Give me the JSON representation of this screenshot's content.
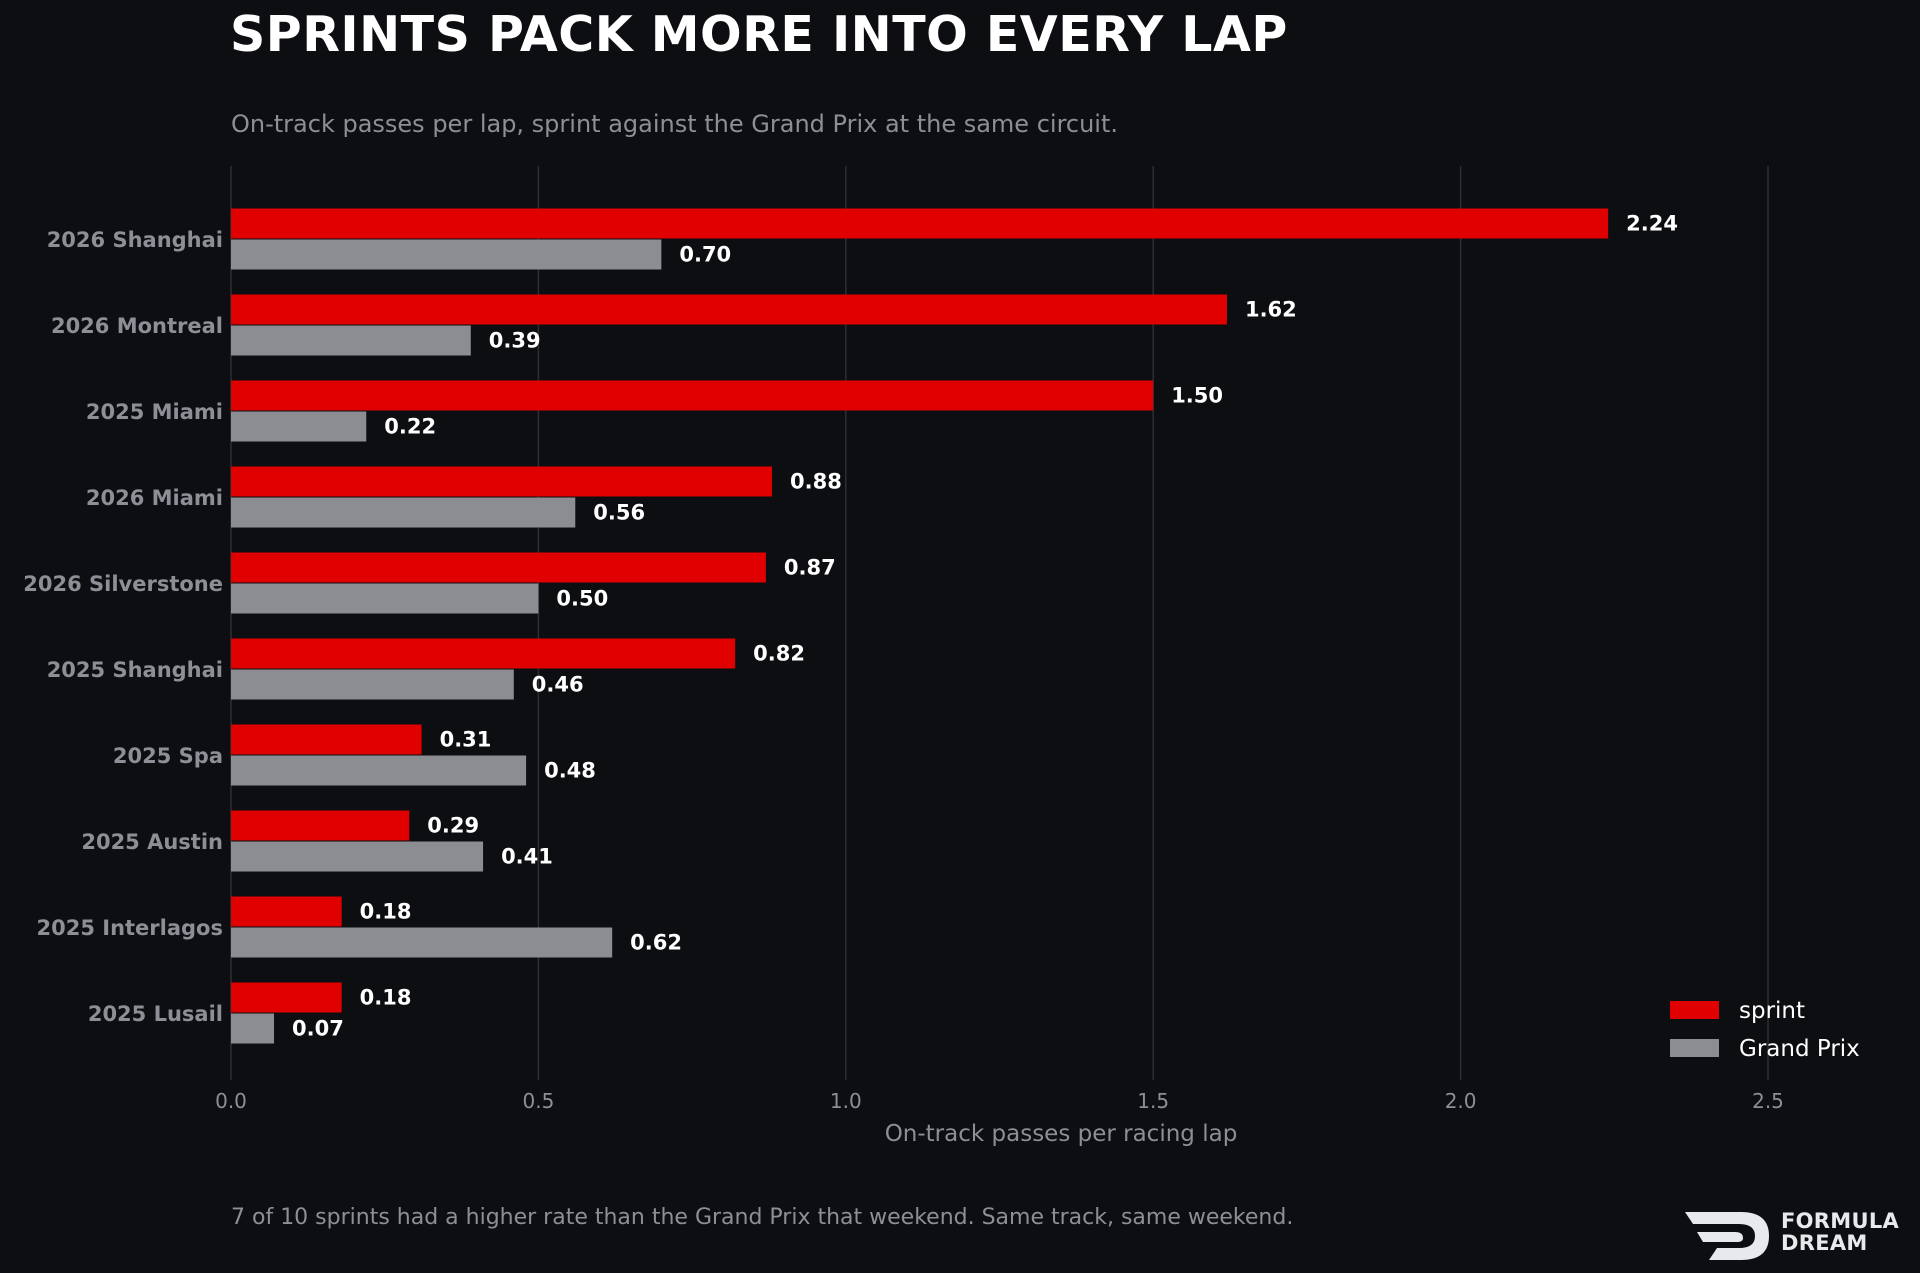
{
  "title": "SPRINTS PACK MORE INTO EVERY LAP",
  "subtitle": "On-track passes per lap, sprint against the Grand Prix at the same circuit.",
  "footnote": "7 of 10 sprints had a higher rate than the Grand Prix that weekend. Same track, same weekend.",
  "logo": {
    "line1": "FORMULA",
    "line2": "DREAM"
  },
  "colors": {
    "background": "#0d0e11",
    "sprint": "#e00000",
    "grand_prix": "#8b8d93",
    "grid": "#2c2e33",
    "tick": "#8c8f96",
    "value_label": "#ffffff"
  },
  "chart_data": {
    "type": "bar",
    "orientation": "horizontal",
    "categories": [
      "2026 Shanghai",
      "2026 Montreal",
      "2025 Miami",
      "2026 Miami",
      "2026 Silverstone",
      "2025 Shanghai",
      "2025 Spa",
      "2025 Austin",
      "2025 Interlagos",
      "2025 Lusail"
    ],
    "series": [
      {
        "name": "sprint",
        "values": [
          2.24,
          1.62,
          1.5,
          0.88,
          0.87,
          0.82,
          0.31,
          0.29,
          0.18,
          0.18
        ],
        "labels": [
          "2.24",
          "1.62",
          "1.50",
          "0.88",
          "0.87",
          "0.82",
          "0.31",
          "0.29",
          "0.18",
          "0.18"
        ]
      },
      {
        "name": "Grand Prix",
        "values": [
          0.7,
          0.39,
          0.22,
          0.56,
          0.5,
          0.46,
          0.48,
          0.41,
          0.62,
          0.07
        ],
        "labels": [
          "0.70",
          "0.39",
          "0.22",
          "0.56",
          "0.50",
          "0.46",
          "0.48",
          "0.41",
          "0.62",
          "0.07"
        ]
      }
    ],
    "xlabel": "On-track passes per racing lap",
    "xlim": [
      0,
      2.5
    ],
    "xticks": [
      "0.0",
      "0.5",
      "1.0",
      "1.5",
      "2.0",
      "2.5"
    ],
    "grid": "vertical",
    "legend": "bottom-right"
  }
}
